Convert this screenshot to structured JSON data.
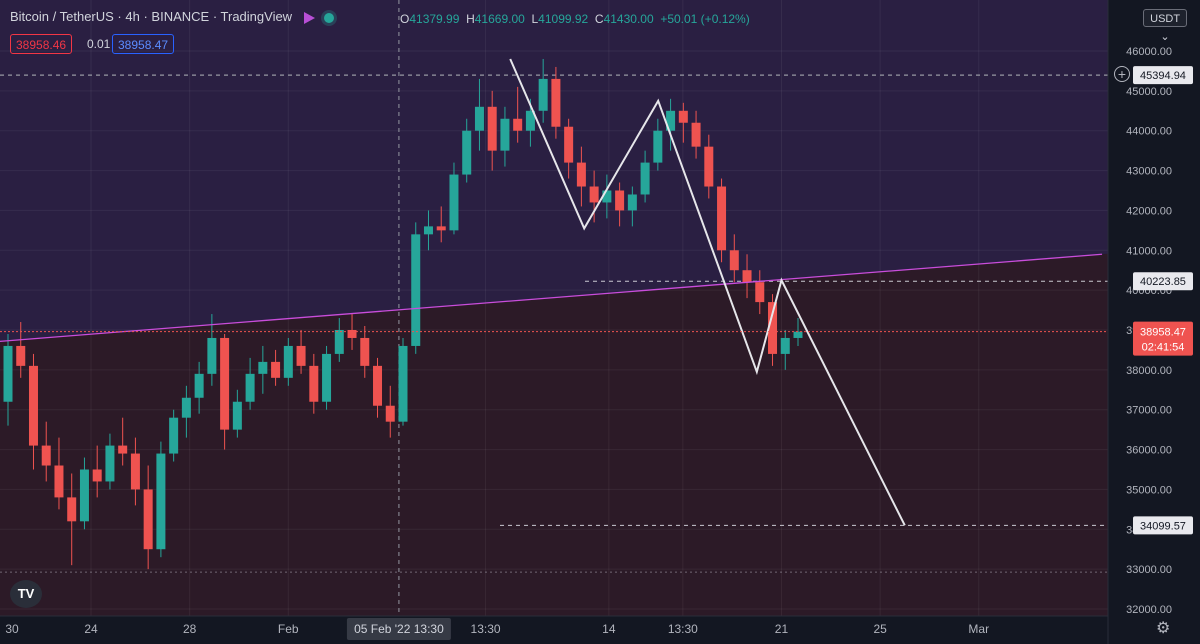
{
  "header": {
    "symbol": "Bitcoin / TetherUS",
    "interval": "4h",
    "exchange": "BINANCE",
    "platform": "TradingView",
    "o_label": "O",
    "o_val": "41379.99",
    "h_label": "H",
    "h_val": "41669.00",
    "l_label": "L",
    "l_val": "41099.92",
    "c_label": "C",
    "c_val": "41430.00",
    "change": "+50.01 (+0.12%)"
  },
  "quote": {
    "sell": "38958.46",
    "spread": "0.01",
    "buy": "38958.47"
  },
  "currency": "USDT",
  "countdown": "02:41:54",
  "logo_text": "TV",
  "colors": {
    "up": "#26a69a",
    "down": "#ef5350",
    "trend": "#c94ddb",
    "pattern": "#e6e6ea",
    "bg_above": "#2a1f42",
    "bg_below": "#2c1a27"
  },
  "chart_data": {
    "type": "candlestick",
    "title": "",
    "ylim": [
      32000,
      46500
    ],
    "y_ticks": [
      32000,
      33000,
      34000,
      35000,
      36000,
      37000,
      38000,
      39000,
      40000,
      41000,
      42000,
      43000,
      44000,
      45000,
      46000
    ],
    "x_ticks": [
      {
        "label": "30",
        "date": "2022-01-19"
      },
      {
        "label": "24",
        "date": "2022-01-24"
      },
      {
        "label": "28",
        "date": "2022-01-28"
      },
      {
        "label": "Feb",
        "date": "2022-02-01"
      },
      {
        "label": "13:30",
        "date": "2022-02-09"
      },
      {
        "label": "14",
        "date": "2022-02-14"
      },
      {
        "label": "13:30",
        "date": "2022-02-17"
      },
      {
        "label": "21",
        "date": "2022-02-21"
      },
      {
        "label": "25",
        "date": "2022-02-25"
      },
      {
        "label": "Mar",
        "date": "2022-03-01"
      }
    ],
    "crosshair": {
      "date_label": "05 Feb '22",
      "time_label": "13:30",
      "date": "2022-02-05"
    },
    "price_labels": [
      {
        "text": "45394.94",
        "value": 45394.94
      },
      {
        "text": "40223.85",
        "value": 40223.85
      },
      {
        "text": "34099.57",
        "value": 34099.57
      }
    ],
    "current_price": {
      "text": "38958.47",
      "value": 38958.47
    },
    "candles_ohlc": [
      [
        37200,
        38900,
        36600,
        38600
      ],
      [
        38600,
        39200,
        37800,
        38100
      ],
      [
        38100,
        38400,
        35500,
        36100
      ],
      [
        36100,
        36700,
        35200,
        35600
      ],
      [
        35600,
        36300,
        34500,
        34800
      ],
      [
        34800,
        35400,
        33100,
        34200
      ],
      [
        34200,
        35800,
        34000,
        35500
      ],
      [
        35500,
        36100,
        34800,
        35200
      ],
      [
        35200,
        36400,
        35000,
        36100
      ],
      [
        36100,
        36800,
        35600,
        35900
      ],
      [
        35900,
        36300,
        34600,
        35000
      ],
      [
        35000,
        35600,
        33000,
        33500
      ],
      [
        33500,
        36200,
        33300,
        35900
      ],
      [
        35900,
        37000,
        35700,
        36800
      ],
      [
        36800,
        37600,
        36300,
        37300
      ],
      [
        37300,
        38200,
        36900,
        37900
      ],
      [
        37900,
        39400,
        37600,
        38800
      ],
      [
        38800,
        38900,
        36000,
        36500
      ],
      [
        36500,
        37500,
        36300,
        37200
      ],
      [
        37200,
        38300,
        37000,
        37900
      ],
      [
        37900,
        38600,
        37400,
        38200
      ],
      [
        38200,
        38500,
        37600,
        37800
      ],
      [
        37800,
        38800,
        37600,
        38600
      ],
      [
        38600,
        39000,
        37900,
        38100
      ],
      [
        38100,
        38400,
        36900,
        37200
      ],
      [
        37200,
        38600,
        37000,
        38400
      ],
      [
        38400,
        39300,
        38200,
        39000
      ],
      [
        39000,
        39400,
        38500,
        38800
      ],
      [
        38800,
        39100,
        37800,
        38100
      ],
      [
        38100,
        38300,
        36800,
        37100
      ],
      [
        37100,
        37600,
        36300,
        36700
      ],
      [
        36700,
        38800,
        36600,
        38600
      ],
      [
        38600,
        41700,
        38400,
        41400
      ],
      [
        41400,
        42000,
        41000,
        41600
      ],
      [
        41600,
        42100,
        41200,
        41500
      ],
      [
        41500,
        43200,
        41400,
        42900
      ],
      [
        42900,
        44300,
        42700,
        44000
      ],
      [
        44000,
        45300,
        43500,
        44600
      ],
      [
        44600,
        45000,
        43000,
        43500
      ],
      [
        43500,
        44600,
        43100,
        44300
      ],
      [
        44300,
        45100,
        43700,
        44000
      ],
      [
        44000,
        44800,
        43600,
        44500
      ],
      [
        44500,
        45800,
        44200,
        45300
      ],
      [
        45300,
        45600,
        43800,
        44100
      ],
      [
        44100,
        44300,
        42800,
        43200
      ],
      [
        43200,
        43600,
        42100,
        42600
      ],
      [
        42600,
        43000,
        41700,
        42200
      ],
      [
        42200,
        42900,
        41800,
        42500
      ],
      [
        42500,
        42700,
        41600,
        42000
      ],
      [
        42000,
        42600,
        41600,
        42400
      ],
      [
        42400,
        43500,
        42200,
        43200
      ],
      [
        43200,
        44300,
        43000,
        44000
      ],
      [
        44000,
        44800,
        43500,
        44500
      ],
      [
        44500,
        44700,
        43700,
        44200
      ],
      [
        44200,
        44500,
        43300,
        43600
      ],
      [
        43600,
        43900,
        42300,
        42600
      ],
      [
        42600,
        42800,
        40700,
        41000
      ],
      [
        41000,
        41400,
        40200,
        40500
      ],
      [
        40500,
        40900,
        39800,
        40200
      ],
      [
        40200,
        40500,
        39400,
        39700
      ],
      [
        39700,
        39900,
        38100,
        38400
      ],
      [
        38400,
        39000,
        38000,
        38800
      ],
      [
        38800,
        39300,
        38600,
        38958.47
      ]
    ],
    "trendline": {
      "start": {
        "date": "2022-01-19",
        "price": 38650
      },
      "end": {
        "date": "2022-03-06",
        "price": 40900
      }
    },
    "pattern_points": [
      {
        "date": "2022-02-10",
        "price": 45800
      },
      {
        "date": "2022-02-13",
        "price": 41550
      },
      {
        "date": "2022-02-16",
        "price": 44750
      },
      {
        "date": "2022-02-20",
        "price": 37950
      },
      {
        "date": "2022-02-21",
        "price": 40250
      },
      {
        "date": "2022-02-26",
        "price": 34099.57
      }
    ]
  }
}
